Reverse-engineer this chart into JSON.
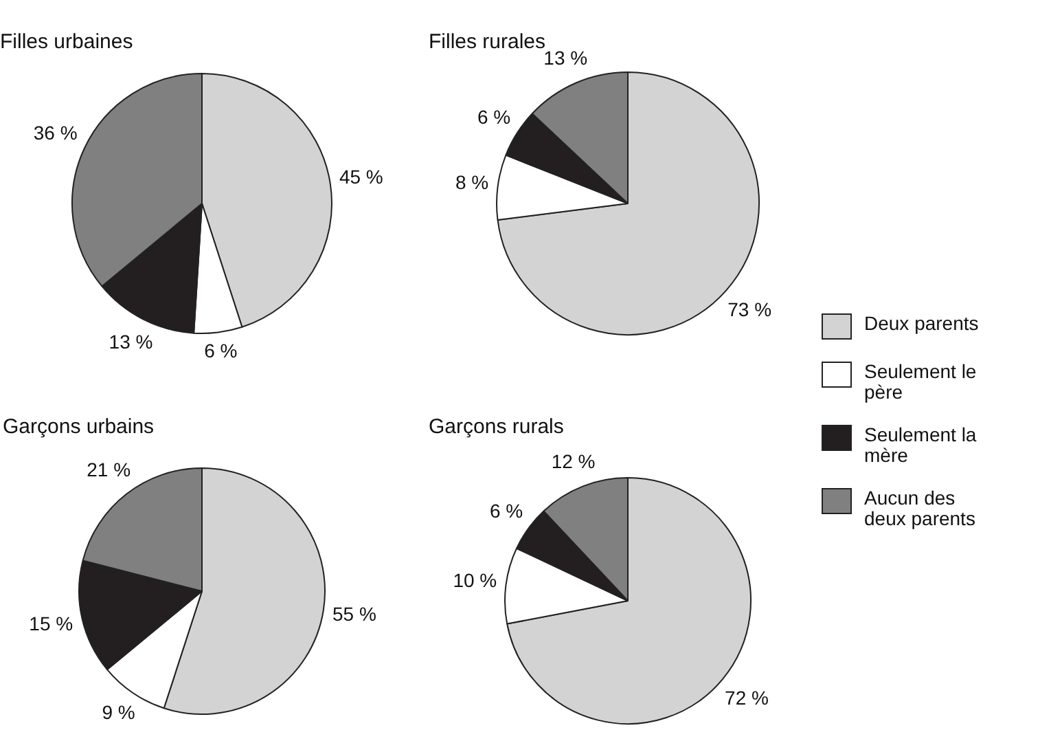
{
  "chart_data": [
    {
      "type": "pie",
      "title": "Filles urbaines",
      "categories": [
        "Deux parents",
        "Seulement le père",
        "Seulement la mère",
        "Aucun des deux parents"
      ],
      "values": [
        45,
        6,
        13,
        36
      ],
      "value_labels": [
        "45 %",
        "6 %",
        "13 %",
        "36 %"
      ],
      "colors": [
        "#d3d3d3",
        "#ffffff",
        "#231f20",
        "#808080"
      ],
      "legend": "right"
    },
    {
      "type": "pie",
      "title": "Filles rurales",
      "categories": [
        null,
        null,
        null,
        null
      ],
      "values": [
        73,
        8,
        6,
        13
      ],
      "value_labels": [
        "73 %",
        "8 %",
        "6 %",
        "13 %"
      ],
      "colors": [
        "#d3d3d3",
        "#ffffff",
        "#231f20",
        "#808080"
      ]
    },
    {
      "type": "pie",
      "title": "Garçons urbains",
      "categories": [
        null,
        null,
        null,
        null
      ],
      "values": [
        55,
        9,
        15,
        21
      ],
      "value_labels": [
        "55 %",
        "9 %",
        "15 %",
        "21 %"
      ],
      "colors": [
        "#d3d3d3",
        "#ffffff",
        "#231f20",
        "#808080"
      ]
    },
    {
      "type": "pie",
      "title": "Garçons rurals",
      "categories": [
        null,
        null,
        null,
        null
      ],
      "values": [
        72,
        10,
        6,
        12
      ],
      "value_labels": [
        "72 %",
        "10 %",
        "6 %",
        "12 %"
      ],
      "colors": [
        "#d3d3d3",
        "#ffffff",
        "#231f20",
        "#808080"
      ]
    }
  ]
}
